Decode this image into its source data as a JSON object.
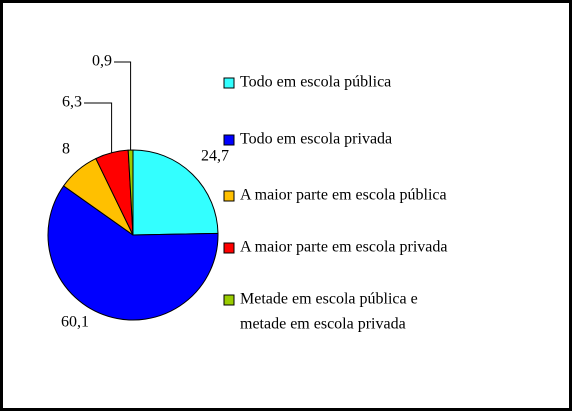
{
  "chart_data": {
    "type": "pie",
    "labels": [
      "Todo em escola pública",
      "Todo em escola privada",
      "A maior parte em escola pública",
      "A maior parte em escola privada",
      [
        "Metade em escola pública e",
        "metade em escola privada"
      ]
    ],
    "values": [
      24.7,
      60.1,
      8,
      6.3,
      0.9
    ],
    "value_labels": [
      "24,7",
      "60,1",
      "8",
      "6,3",
      "0,9"
    ],
    "colors": [
      "#33ffff",
      "#0000ff",
      "#ffc000",
      "#ff0000",
      "#99cc00"
    ]
  }
}
